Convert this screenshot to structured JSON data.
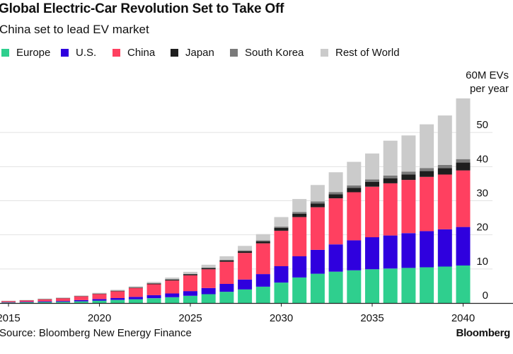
{
  "header": {
    "title": "Global Electric-Car Revolution Set to Take Off",
    "subtitle": "China set to lead EV market"
  },
  "annotation": {
    "line1": "60M EVs",
    "line2": "per year"
  },
  "footer": {
    "source": "Source: Bloomberg New Energy Finance",
    "brand": "Bloomberg"
  },
  "colors": {
    "Europe": "#2fcf8e",
    "U.S.": "#2f00de",
    "China": "#ff4060",
    "Japan": "#1e1e1e",
    "South Korea": "#7a7a7a",
    "Rest of World": "#cbcbcb",
    "gridline": "#e2e2e2",
    "axis": "#222222"
  },
  "chart_data": {
    "type": "bar",
    "stacked": true,
    "title": "Global Electric-Car Revolution Set to Take Off",
    "subtitle": "China set to lead EV market",
    "xlabel": "",
    "ylabel": "",
    "unit": "M EVs per year",
    "ylim": [
      0,
      60
    ],
    "yticks": [
      0,
      10,
      20,
      30,
      40,
      50
    ],
    "xtick_labels": [
      "2015",
      "2020",
      "2025",
      "2030",
      "2035",
      "2040"
    ],
    "grid": true,
    "legend_position": "top",
    "categories": [
      "2015",
      "2016",
      "2017",
      "2018",
      "2019",
      "2020",
      "2021",
      "2022",
      "2023",
      "2024",
      "2025",
      "2026",
      "2027",
      "2028",
      "2029",
      "2030",
      "2031",
      "2032",
      "2033",
      "2034",
      "2035",
      "2036",
      "2037",
      "2038",
      "2039",
      "2040"
    ],
    "series": [
      {
        "name": "Europe",
        "values": [
          0.15,
          0.2,
          0.3,
          0.35,
          0.5,
          0.7,
          0.9,
          1.1,
          1.4,
          1.7,
          2.1,
          2.6,
          3.3,
          4.0,
          4.8,
          6.0,
          7.5,
          8.6,
          9.2,
          9.6,
          9.9,
          10.1,
          10.3,
          10.5,
          10.7,
          11.0
        ]
      },
      {
        "name": "U.S.",
        "values": [
          0.1,
          0.15,
          0.2,
          0.25,
          0.35,
          0.45,
          0.55,
          0.7,
          0.9,
          1.1,
          1.4,
          1.8,
          2.3,
          2.9,
          3.7,
          4.8,
          6.2,
          7.0,
          8.0,
          8.8,
          9.4,
          9.7,
          10.2,
          10.6,
          10.9,
          11.3
        ]
      },
      {
        "name": "China",
        "values": [
          0.3,
          0.4,
          0.6,
          0.8,
          1.1,
          1.5,
          2.0,
          2.6,
          3.2,
          3.8,
          4.6,
          5.5,
          6.5,
          7.8,
          9.0,
          10.4,
          11.5,
          12.5,
          13.5,
          14.1,
          14.8,
          15.3,
          15.6,
          15.9,
          16.1,
          16.6
        ]
      },
      {
        "name": "Japan",
        "values": [
          0.05,
          0.05,
          0.06,
          0.07,
          0.08,
          0.1,
          0.12,
          0.15,
          0.2,
          0.25,
          0.3,
          0.35,
          0.4,
          0.5,
          0.6,
          0.8,
          1.0,
          1.1,
          1.2,
          1.3,
          1.4,
          1.5,
          1.6,
          1.7,
          1.9,
          2.3
        ]
      },
      {
        "name": "South Korea",
        "values": [
          0.02,
          0.02,
          0.03,
          0.03,
          0.04,
          0.05,
          0.06,
          0.08,
          0.1,
          0.12,
          0.15,
          0.18,
          0.2,
          0.25,
          0.3,
          0.4,
          0.5,
          0.6,
          0.65,
          0.7,
          0.75,
          0.8,
          0.85,
          0.9,
          0.9,
          1.0
        ]
      },
      {
        "name": "Rest of World",
        "values": [
          0.05,
          0.08,
          0.1,
          0.12,
          0.15,
          0.2,
          0.25,
          0.3,
          0.4,
          0.5,
          0.6,
          0.8,
          1.0,
          1.3,
          1.8,
          2.8,
          3.8,
          4.8,
          5.8,
          6.9,
          7.6,
          10.2,
          10.6,
          12.8,
          14.5,
          17.8
        ]
      }
    ]
  }
}
